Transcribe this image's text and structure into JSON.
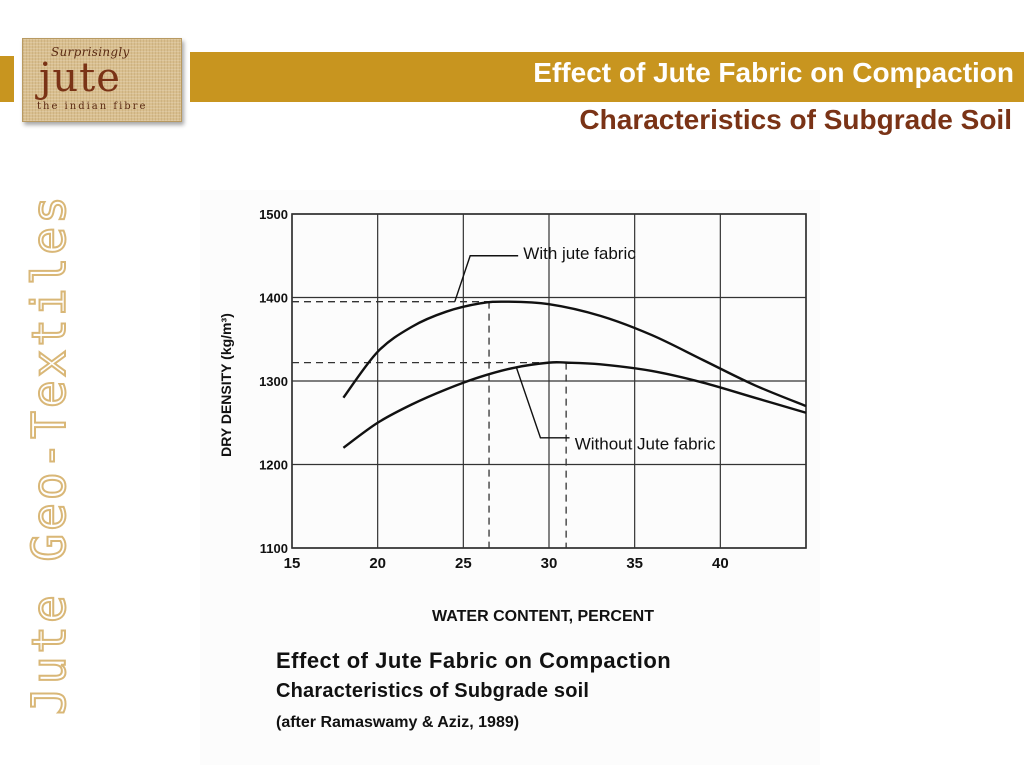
{
  "logo": {
    "tagline": "Surprisingly",
    "word": "jute",
    "subtitle": "the indian fibre"
  },
  "slide": {
    "title_line1": "Effect of Jute Fabric on Compaction",
    "title_line2": "Characteristics of Subgrade Soil",
    "vertical_label": "Jute Geo-Textiles"
  },
  "colors": {
    "band": "#c8951f",
    "title_dark": "#7a3316",
    "vertical_outline": "#d9b777"
  },
  "chart_data": {
    "type": "line",
    "xlabel": "WATER CONTENT, PERCENT",
    "ylabel": "DRY DENSITY (kg/m³)",
    "xlim": [
      15,
      45
    ],
    "ylim": [
      1100,
      1500
    ],
    "xticks": [
      15,
      20,
      25,
      30,
      35,
      40
    ],
    "yticks": [
      1100,
      1200,
      1300,
      1400,
      1500
    ],
    "grid": true,
    "series": [
      {
        "name": "With jute fabric",
        "x": [
          18,
          20,
          22,
          24,
          26,
          27.5,
          30,
          33,
          36,
          39,
          42,
          45
        ],
        "y": [
          1280,
          1335,
          1365,
          1383,
          1393,
          1395,
          1392,
          1378,
          1355,
          1325,
          1295,
          1270
        ]
      },
      {
        "name": "Without Jute fabric",
        "x": [
          18,
          20,
          22,
          24,
          26,
          28,
          30,
          31,
          33,
          36,
          39,
          42,
          45
        ],
        "y": [
          1220,
          1250,
          1272,
          1290,
          1305,
          1316,
          1322,
          1322,
          1320,
          1312,
          1298,
          1280,
          1262
        ]
      }
    ],
    "annotations": [
      {
        "series": "With jute fabric",
        "optimum_moisture": 26.5,
        "max_dry_density": 1395
      },
      {
        "series": "Without Jute fabric",
        "optimum_moisture": 31,
        "max_dry_density": 1322
      }
    ],
    "caption": {
      "line1": "Effect of Jute Fabric on Compaction",
      "line2": "Characteristics of Subgrade soil",
      "line3": "(after Ramaswamy & Aziz, 1989)"
    }
  }
}
